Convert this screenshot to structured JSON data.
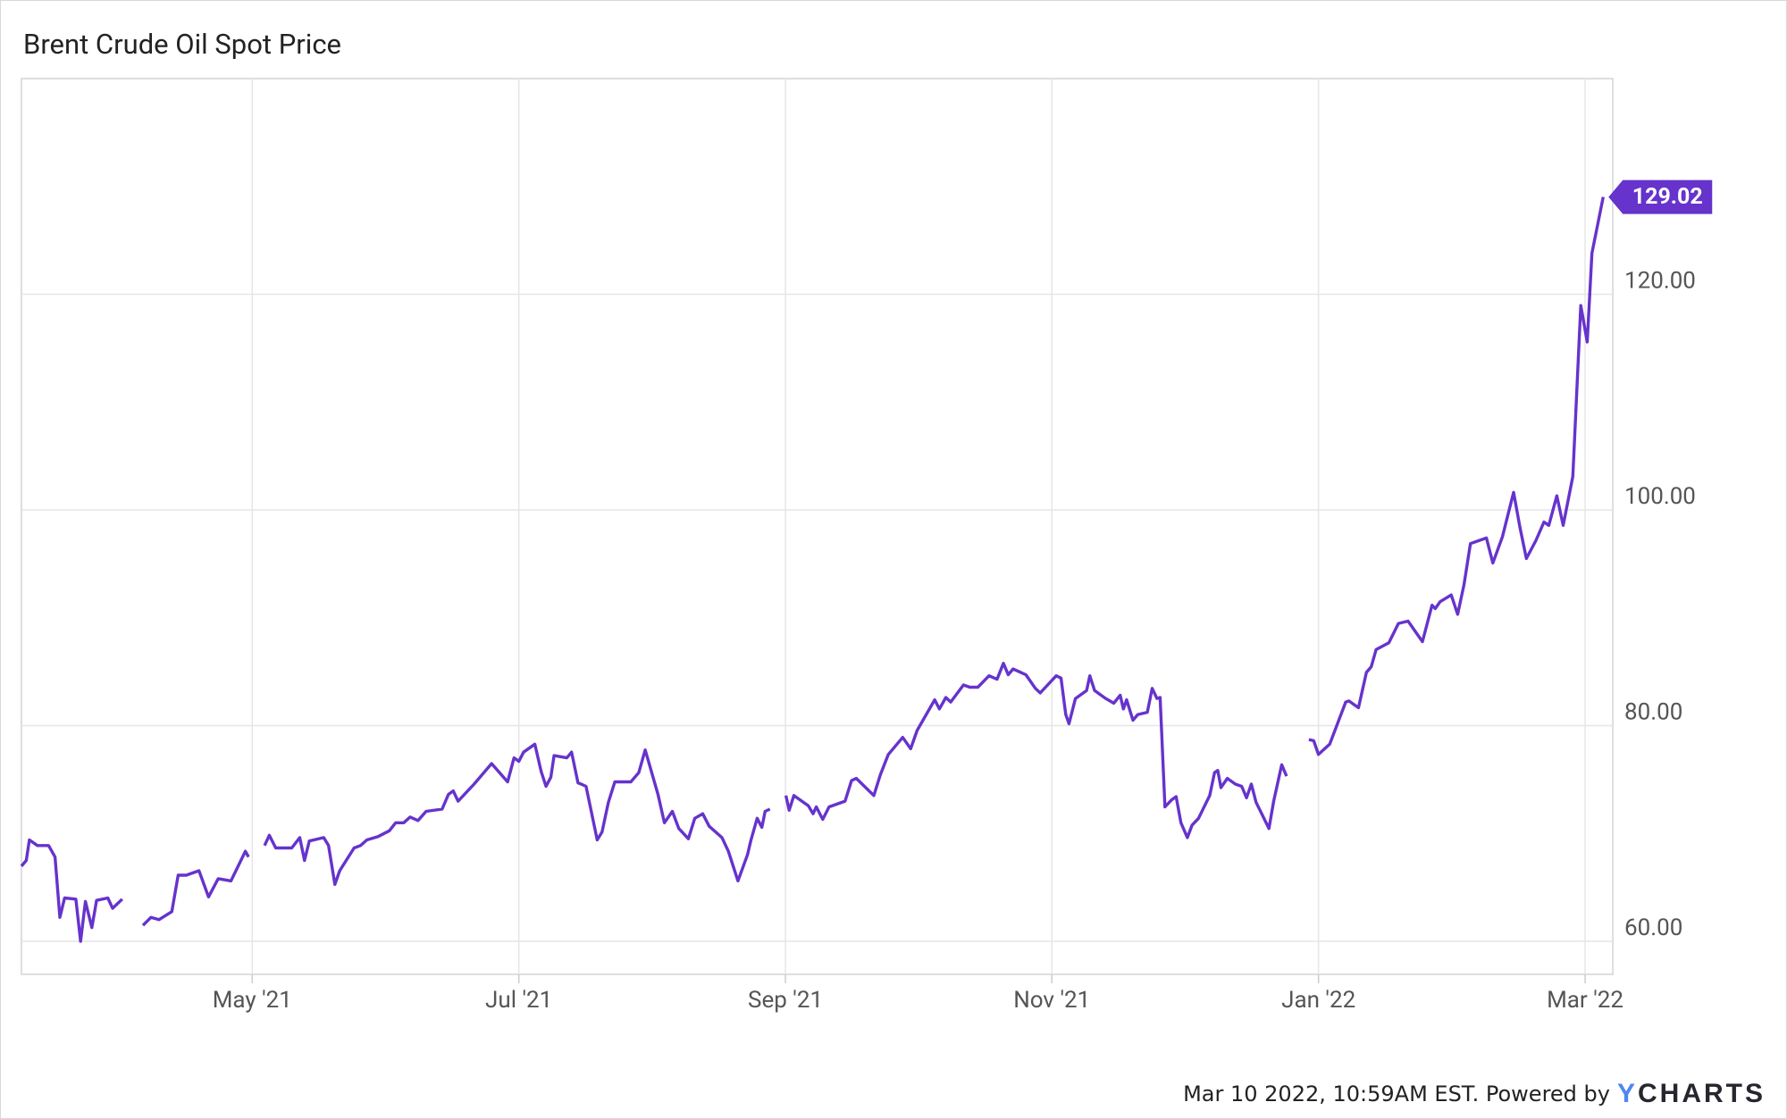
{
  "chart_data": {
    "type": "line",
    "title": "Brent Crude Oil Spot Price",
    "color": "#6633cc",
    "grid": true,
    "xlim": [
      2021.189,
      2022.184
    ],
    "ylim": [
      56.94,
      140
    ],
    "xticks": [
      {
        "value": 2021.3333,
        "label": "May '21"
      },
      {
        "value": 2021.5,
        "label": "Jul '21"
      },
      {
        "value": 2021.6667,
        "label": "Sep '21"
      },
      {
        "value": 2021.8333,
        "label": "Nov '21"
      },
      {
        "value": 2022.0,
        "label": "Jan '22"
      },
      {
        "value": 2022.1667,
        "label": "Mar '22"
      }
    ],
    "yticks": [
      {
        "value": 60,
        "label": "60.00"
      },
      {
        "value": 80,
        "label": "80.00"
      },
      {
        "value": 100,
        "label": "100.00"
      },
      {
        "value": 120,
        "label": "120.00"
      }
    ],
    "x": [
      2021.189,
      2021.192,
      2021.194,
      2021.199,
      2021.206,
      2021.21,
      2021.213,
      2021.216,
      2021.223,
      2021.226,
      2021.229,
      2021.233,
      2021.236,
      2021.243,
      2021.246,
      2021.252,
      2021.258,
      2021.265,
      2021.27,
      2021.275,
      2021.283,
      2021.287,
      2021.292,
      2021.3,
      2021.306,
      2021.312,
      2021.32,
      2021.329,
      2021.331,
      2021.336,
      2021.341,
      2021.344,
      2021.348,
      2021.358,
      2021.363,
      2021.366,
      2021.369,
      2021.378,
      2021.381,
      2021.385,
      2021.388,
      2021.397,
      2021.401,
      2021.405,
      2021.412,
      2021.419,
      2021.423,
      2021.428,
      2021.432,
      2021.437,
      2021.442,
      2021.452,
      2021.456,
      2021.459,
      2021.462,
      2021.472,
      2021.483,
      2021.493,
      2021.497,
      2021.5,
      2021.503,
      2021.51,
      2021.514,
      2021.517,
      2021.52,
      2021.522,
      2021.53,
      2021.533,
      2021.537,
      2021.539,
      2021.542,
      2021.549,
      2021.552,
      2021.556,
      2021.56,
      2021.57,
      2021.575,
      2021.579,
      2021.587,
      2021.591,
      2021.596,
      2021.6,
      2021.606,
      2021.61,
      2021.615,
      2021.619,
      2021.627,
      2021.631,
      2021.637,
      2021.643,
      2021.645,
      2021.649,
      2021.652,
      2021.654,
      2021.657,
      2021.662,
      2021.667,
      2021.669,
      2021.672,
      2021.681,
      2021.684,
      2021.686,
      2021.69,
      2021.694,
      2021.704,
      2021.708,
      2021.711,
      2021.722,
      2021.726,
      2021.731,
      2021.74,
      2021.745,
      2021.749,
      2021.76,
      2021.763,
      2021.767,
      2021.77,
      2021.778,
      2021.782,
      2021.787,
      2021.794,
      2021.799,
      2021.803,
      2021.806,
      2021.809,
      2021.817,
      2021.823,
      2021.826,
      2021.836,
      2021.839,
      2021.842,
      2021.844,
      2021.848,
      2021.855,
      2021.857,
      2021.86,
      2021.867,
      2021.872,
      2021.876,
      2021.878,
      2021.88,
      2021.884,
      2021.887,
      2021.893,
      2021.896,
      2021.899,
      2021.901,
      2021.904,
      2021.908,
      2021.911,
      2021.914,
      2021.918,
      2021.921,
      2021.925,
      2021.932,
      2021.935,
      2021.937,
      2021.939,
      2021.943,
      2021.948,
      2021.952,
      2021.955,
      2021.958,
      2021.961,
      2021.969,
      2021.972,
      2021.977,
      2021.98,
      2021.986,
      2021.994,
      2021.997,
      2022.0,
      2022.007,
      2022.017,
      2022.019,
      2022.025,
      2022.03,
      2022.033,
      2022.036,
      2022.044,
      2022.05,
      2022.056,
      2022.065,
      2022.071,
      2022.073,
      2022.076,
      2022.083,
      2022.087,
      2022.091,
      2022.095,
      2022.105,
      2022.109,
      2022.115,
      2022.122,
      2022.126,
      2022.13,
      2022.136,
      2022.141,
      2022.144,
      2022.149,
      2022.153,
      2022.159,
      2022.164,
      2022.168,
      2022.171,
      2022.178
    ],
    "values": [
      66.97,
      67.5,
      69.4,
      68.88,
      68.88,
      67.82,
      62.22,
      64.02,
      63.91,
      60.0,
      63.7,
      61.27,
      63.8,
      64.02,
      63.06,
      63.91,
      null,
      61.48,
      62.22,
      62.01,
      62.75,
      66.13,
      66.13,
      66.55,
      64.12,
      65.81,
      65.6,
      68.35,
      67.82,
      null,
      68.88,
      69.83,
      68.66,
      68.66,
      69.62,
      67.5,
      69.3,
      69.62,
      68.88,
      65.28,
      66.55,
      68.66,
      68.88,
      69.4,
      69.72,
      70.25,
      70.99,
      70.99,
      71.52,
      71.2,
      72.05,
      72.26,
      73.63,
      73.95,
      73.0,
      74.58,
      76.48,
      74.79,
      77.01,
      76.69,
      77.54,
      78.28,
      75.74,
      74.37,
      75.22,
      77.22,
      77.01,
      77.54,
      74.69,
      74.58,
      74.37,
      69.4,
      70.14,
      72.89,
      74.79,
      74.79,
      75.64,
      77.75,
      73.63,
      70.99,
      72.05,
      70.46,
      69.51,
      71.41,
      71.83,
      70.67,
      69.62,
      68.35,
      65.6,
      68.03,
      69.3,
      71.41,
      70.57,
      72.05,
      72.26,
      null,
      73.52,
      72.15,
      73.52,
      72.57,
      71.83,
      72.47,
      71.31,
      72.47,
      73.0,
      74.9,
      75.11,
      73.52,
      75.43,
      77.33,
      78.91,
      77.86,
      79.55,
      82.4,
      81.55,
      82.61,
      82.19,
      83.77,
      83.56,
      83.56,
      84.62,
      84.3,
      85.78,
      84.72,
      85.25,
      84.72,
      83.46,
      83.03,
      84.62,
      84.41,
      81.03,
      80.18,
      82.51,
      83.25,
      84.62,
      83.25,
      82.51,
      82.08,
      82.82,
      81.55,
      82.4,
      80.5,
      81.03,
      81.24,
      83.46,
      82.51,
      82.61,
      72.47,
      73.1,
      73.42,
      70.99,
      69.62,
      70.78,
      71.41,
      73.52,
      75.64,
      75.85,
      74.26,
      75.11,
      74.58,
      74.37,
      73.31,
      74.58,
      72.89,
      70.46,
      73.0,
      76.38,
      75.32,
      null,
      78.7,
      78.6,
      77.33,
      78.28,
      82.19,
      82.29,
      81.66,
      84.94,
      85.46,
      87.05,
      87.68,
      89.48,
      89.69,
      87.79,
      91.17,
      90.85,
      91.49,
      92.12,
      90.32,
      93.07,
      96.88,
      97.4,
      95.08,
      97.51,
      101.63,
      98.35,
      95.5,
      97.19,
      98.88,
      98.57,
      101.31,
      98.57,
      103.11,
      118.96,
      115.58,
      123.82,
      129.02
    ],
    "source": "Mar 10 2022, 10:59AM EST. Powered by",
    "brand": "YCHARTS"
  }
}
